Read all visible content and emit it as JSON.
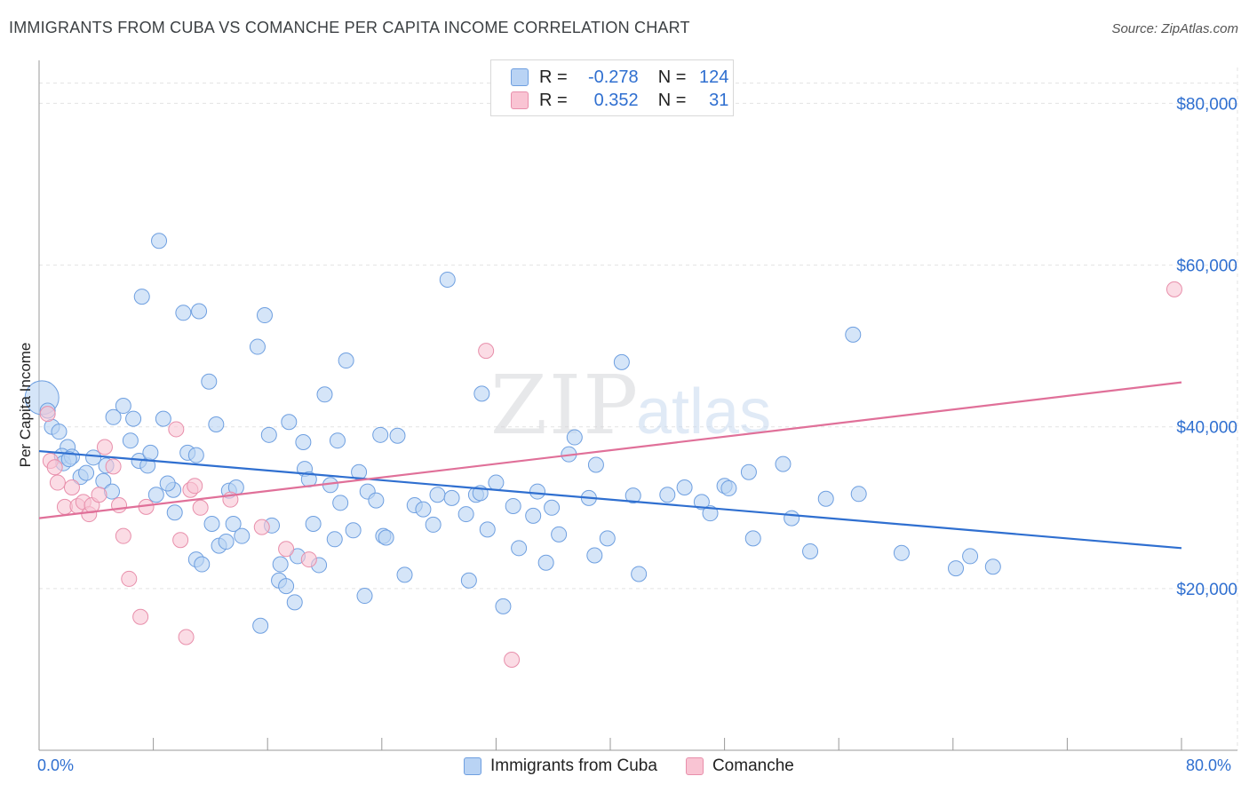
{
  "title": "IMMIGRANTS FROM CUBA VS COMANCHE PER CAPITA INCOME CORRELATION CHART",
  "source": "Source: ZipAtlas.com",
  "watermark": {
    "zip": "ZIP",
    "atlas": "atlas"
  },
  "legend": {
    "r_label": "R =",
    "n_label": "N =",
    "rows": [
      {
        "r": "-0.278",
        "n": "124",
        "fill": "#b9d3f4",
        "stroke": "#6e9fe0"
      },
      {
        "r": "0.352",
        "n": "31",
        "fill": "#f9c4d3",
        "stroke": "#e88fab"
      }
    ]
  },
  "chart_data": {
    "type": "scatter",
    "title": "IMMIGRANTS FROM CUBA VS COMANCHE PER CAPITA INCOME CORRELATION CHART",
    "xlabel": "",
    "ylabel": "Per Capita Income",
    "xlim": [
      0,
      80
    ],
    "ylim": [
      0,
      84000
    ],
    "x_tick_labels": [
      "0.0%",
      "80.0%"
    ],
    "y_ticks": [
      20000,
      40000,
      60000,
      80000
    ],
    "y_tick_labels": [
      "$20,000",
      "$40,000",
      "$60,000",
      "$80,000"
    ],
    "grid": true,
    "series": [
      {
        "name": "Immigrants from Cuba",
        "color": "#6e9fe0",
        "fill": "#b9d3f4",
        "line_color": "#2f6fd0",
        "trend": [
          [
            0,
            37000
          ],
          [
            80,
            25000
          ]
        ],
        "points": [
          [
            0.2,
            43600
          ],
          [
            0.6,
            42000
          ],
          [
            0.9,
            40000
          ],
          [
            1.4,
            39400
          ],
          [
            2.0,
            37500
          ],
          [
            1.6,
            36400
          ],
          [
            1.7,
            35500
          ],
          [
            2.3,
            36300
          ],
          [
            2.9,
            33800
          ],
          [
            3.3,
            34300
          ],
          [
            3.8,
            36200
          ],
          [
            4.5,
            33300
          ],
          [
            5.1,
            32000
          ],
          [
            5.2,
            41200
          ],
          [
            5.9,
            42600
          ],
          [
            6.4,
            38300
          ],
          [
            6.6,
            41000
          ],
          [
            7.0,
            35800
          ],
          [
            7.6,
            35200
          ],
          [
            7.8,
            36800
          ],
          [
            8.2,
            31600
          ],
          [
            8.4,
            63000
          ],
          [
            7.2,
            56100
          ],
          [
            8.7,
            41000
          ],
          [
            9.5,
            29400
          ],
          [
            9.4,
            32200
          ],
          [
            10.1,
            54100
          ],
          [
            10.4,
            36800
          ],
          [
            11.0,
            36500
          ],
          [
            11.2,
            54300
          ],
          [
            11.0,
            23600
          ],
          [
            11.4,
            23000
          ],
          [
            11.9,
            45600
          ],
          [
            12.1,
            28000
          ],
          [
            12.4,
            40300
          ],
          [
            12.6,
            25300
          ],
          [
            13.1,
            25800
          ],
          [
            13.3,
            32100
          ],
          [
            13.6,
            28000
          ],
          [
            13.8,
            32500
          ],
          [
            15.3,
            49900
          ],
          [
            15.5,
            15400
          ],
          [
            15.8,
            53800
          ],
          [
            16.1,
            39000
          ],
          [
            16.3,
            27800
          ],
          [
            16.9,
            23000
          ],
          [
            16.8,
            21000
          ],
          [
            17.3,
            20300
          ],
          [
            17.5,
            40600
          ],
          [
            17.9,
            18300
          ],
          [
            18.1,
            24000
          ],
          [
            18.5,
            38100
          ],
          [
            18.6,
            34800
          ],
          [
            18.9,
            33500
          ],
          [
            19.2,
            28000
          ],
          [
            19.6,
            22900
          ],
          [
            20.0,
            44000
          ],
          [
            20.4,
            32800
          ],
          [
            20.7,
            26100
          ],
          [
            20.9,
            38300
          ],
          [
            21.1,
            30600
          ],
          [
            21.5,
            48200
          ],
          [
            22.0,
            27200
          ],
          [
            22.4,
            34400
          ],
          [
            22.8,
            19100
          ],
          [
            23.0,
            32000
          ],
          [
            23.6,
            30900
          ],
          [
            23.9,
            39000
          ],
          [
            24.1,
            26500
          ],
          [
            24.3,
            26300
          ],
          [
            25.1,
            38900
          ],
          [
            25.6,
            21700
          ],
          [
            26.3,
            30300
          ],
          [
            27.6,
            27900
          ],
          [
            27.9,
            31600
          ],
          [
            28.9,
            31200
          ],
          [
            28.6,
            58200
          ],
          [
            29.9,
            29200
          ],
          [
            30.1,
            21000
          ],
          [
            30.6,
            31600
          ],
          [
            30.9,
            31800
          ],
          [
            31.0,
            44100
          ],
          [
            31.4,
            27300
          ],
          [
            32.0,
            33100
          ],
          [
            32.5,
            17800
          ],
          [
            33.6,
            25000
          ],
          [
            34.6,
            29000
          ],
          [
            34.9,
            32000
          ],
          [
            35.5,
            23200
          ],
          [
            35.9,
            30000
          ],
          [
            36.4,
            26700
          ],
          [
            37.1,
            36600
          ],
          [
            37.5,
            38700
          ],
          [
            38.5,
            31200
          ],
          [
            38.9,
            24100
          ],
          [
            39.0,
            35300
          ],
          [
            39.8,
            26200
          ],
          [
            40.8,
            48000
          ],
          [
            41.6,
            31500
          ],
          [
            42.0,
            21800
          ],
          [
            44.0,
            31600
          ],
          [
            45.2,
            32500
          ],
          [
            46.4,
            30700
          ],
          [
            47.0,
            29300
          ],
          [
            48.0,
            32700
          ],
          [
            48.3,
            32400
          ],
          [
            49.7,
            34400
          ],
          [
            50.0,
            26200
          ],
          [
            52.1,
            35400
          ],
          [
            52.7,
            28700
          ],
          [
            54.0,
            24600
          ],
          [
            55.1,
            31100
          ],
          [
            57.0,
            51400
          ],
          [
            57.4,
            31700
          ],
          [
            60.4,
            24400
          ],
          [
            64.2,
            22500
          ],
          [
            65.2,
            24000
          ],
          [
            66.8,
            22700
          ],
          [
            2.1,
            36000
          ],
          [
            4.7,
            35200
          ],
          [
            9.0,
            33000
          ],
          [
            14.2,
            26500
          ],
          [
            26.9,
            29800
          ],
          [
            33.2,
            30200
          ]
        ]
      },
      {
        "name": "Comanche",
        "color": "#e88fab",
        "fill": "#f9c4d3",
        "line_color": "#e07099",
        "trend": [
          [
            0,
            28700
          ],
          [
            80,
            45500
          ]
        ],
        "points": [
          [
            0.6,
            41600
          ],
          [
            0.8,
            35800
          ],
          [
            1.1,
            35000
          ],
          [
            1.3,
            33100
          ],
          [
            1.8,
            30100
          ],
          [
            2.3,
            32500
          ],
          [
            2.7,
            30200
          ],
          [
            3.1,
            30700
          ],
          [
            3.5,
            29200
          ],
          [
            3.7,
            30300
          ],
          [
            4.2,
            31600
          ],
          [
            4.6,
            37500
          ],
          [
            5.2,
            35100
          ],
          [
            5.6,
            30300
          ],
          [
            5.9,
            26500
          ],
          [
            6.3,
            21200
          ],
          [
            7.1,
            16500
          ],
          [
            7.5,
            30100
          ],
          [
            9.6,
            39700
          ],
          [
            9.9,
            26000
          ],
          [
            10.3,
            14000
          ],
          [
            10.6,
            32200
          ],
          [
            10.9,
            32700
          ],
          [
            11.3,
            30000
          ],
          [
            13.4,
            31000
          ],
          [
            15.6,
            27600
          ],
          [
            17.3,
            24900
          ],
          [
            18.9,
            23600
          ],
          [
            31.3,
            49400
          ],
          [
            33.1,
            11200
          ],
          [
            79.5,
            57000
          ]
        ]
      }
    ]
  }
}
